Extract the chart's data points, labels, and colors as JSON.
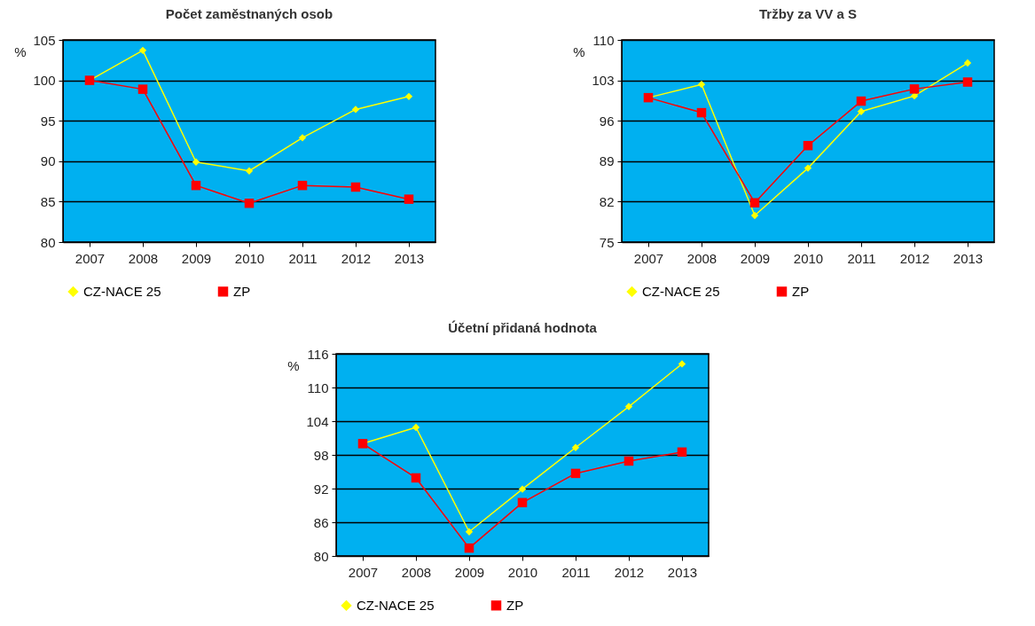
{
  "chart_data": [
    {
      "type": "line",
      "title": "Počet zaměstnaných osob",
      "ylabel": "%",
      "categories": [
        "2007",
        "2008",
        "2009",
        "2010",
        "2011",
        "2012",
        "2013"
      ],
      "ylim": [
        80,
        105
      ],
      "yticks": [
        80,
        85,
        90,
        95,
        100,
        105
      ],
      "grid": "y",
      "legend": "bottom",
      "series": [
        {
          "name": "CZ-NACE 25",
          "color": "#ffff00",
          "marker": "diamond",
          "values": [
            100,
            103.7,
            89.9,
            88.8,
            92.9,
            96.4,
            98.0
          ]
        },
        {
          "name": "ZP",
          "color": "#ff0000",
          "marker": "square",
          "values": [
            100,
            98.9,
            87.0,
            84.8,
            87.0,
            86.8,
            85.3
          ]
        }
      ]
    },
    {
      "type": "line",
      "title": "Tržby za VV a S",
      "ylabel": "%",
      "categories": [
        "2007",
        "2008",
        "2009",
        "2010",
        "2011",
        "2012",
        "2013"
      ],
      "ylim": [
        75,
        110
      ],
      "yticks": [
        75,
        82,
        89,
        96,
        103,
        110
      ],
      "grid": "y",
      "legend": "bottom",
      "series": [
        {
          "name": "CZ-NACE 25",
          "color": "#ffff00",
          "marker": "diamond",
          "values": [
            100,
            102.3,
            79.6,
            87.8,
            97.6,
            100.3,
            106.0
          ]
        },
        {
          "name": "ZP",
          "color": "#ff0000",
          "marker": "square",
          "values": [
            100,
            97.4,
            81.8,
            91.7,
            99.4,
            101.5,
            102.7
          ]
        }
      ]
    },
    {
      "type": "line",
      "title": "Účetní přidaná hodnota",
      "ylabel": "%",
      "categories": [
        "2007",
        "2008",
        "2009",
        "2010",
        "2011",
        "2012",
        "2013"
      ],
      "ylim": [
        80,
        116
      ],
      "yticks": [
        80,
        86,
        92,
        98,
        104,
        110,
        116
      ],
      "grid": "y",
      "legend": "bottom",
      "series": [
        {
          "name": "CZ-NACE 25",
          "color": "#ffff00",
          "marker": "diamond",
          "values": [
            100,
            102.9,
            84.3,
            91.9,
            99.3,
            106.6,
            114.2
          ]
        },
        {
          "name": "ZP",
          "color": "#ff0000",
          "marker": "square",
          "values": [
            100,
            93.9,
            81.4,
            89.5,
            94.7,
            96.9,
            98.5
          ]
        }
      ]
    }
  ]
}
